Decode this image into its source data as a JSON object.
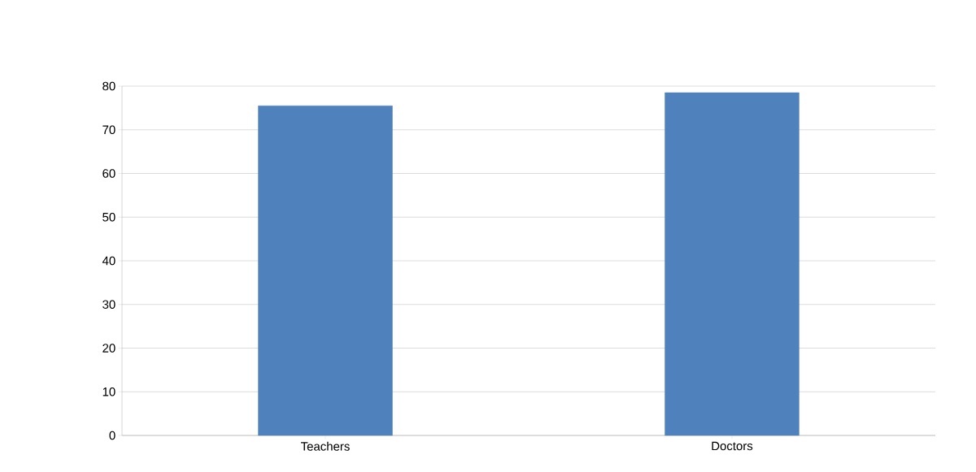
{
  "chart_data": {
    "type": "bar",
    "categories": [
      "Teachers",
      "Doctors"
    ],
    "values": [
      75.5,
      78.5
    ],
    "color": "#4f81bd",
    "ylim": [
      0,
      80
    ],
    "yticks": [
      0,
      10,
      20,
      30,
      40,
      50,
      60,
      70,
      80
    ],
    "grid": "y"
  }
}
